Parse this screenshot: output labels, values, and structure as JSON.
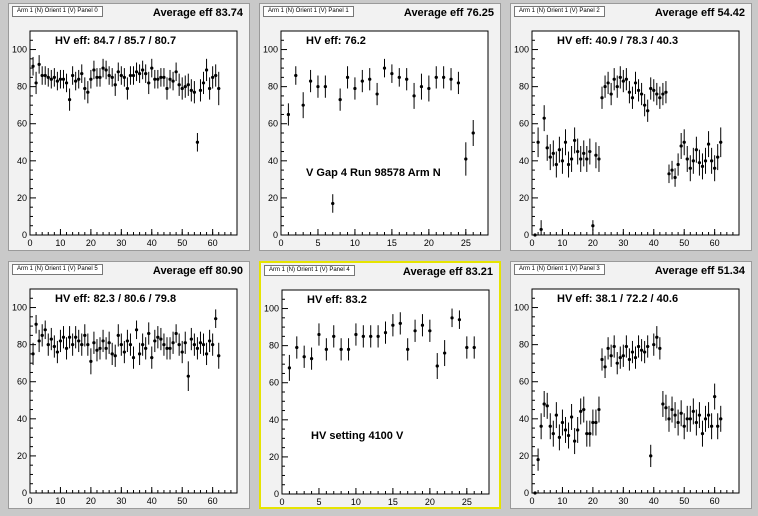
{
  "chart_data": [
    {
      "type": "scatter",
      "pad_title": "Arm 1 (N) Orient 1 (V) Panel 0",
      "average_label": "Average eff 83.74",
      "hv_label": "HV eff:   84.7 / 85.7 / 80.7",
      "annotation": "",
      "xlim": [
        0,
        68
      ],
      "ylim": [
        0,
        110
      ],
      "xticks": [
        0,
        10,
        20,
        30,
        40,
        50,
        60
      ],
      "yticks": [
        0,
        20,
        40,
        60,
        80,
        100
      ],
      "x": [
        1,
        2,
        3,
        4,
        5,
        6,
        7,
        8,
        9,
        10,
        11,
        12,
        13,
        14,
        15,
        16,
        17,
        18,
        19,
        20,
        21,
        22,
        23,
        24,
        25,
        26,
        27,
        28,
        29,
        30,
        31,
        32,
        33,
        34,
        35,
        36,
        37,
        38,
        39,
        40,
        41,
        42,
        43,
        44,
        45,
        46,
        47,
        48,
        49,
        50,
        51,
        52,
        53,
        54,
        55,
        56,
        57,
        58,
        59,
        60,
        61,
        62
      ],
      "y": [
        91,
        82,
        92,
        86,
        86,
        85,
        84,
        85,
        83,
        84,
        84,
        82,
        73,
        86,
        83,
        84,
        87,
        79,
        77,
        84,
        89,
        85,
        85,
        90,
        89,
        86,
        85,
        81,
        88,
        86,
        85,
        79,
        86,
        86,
        88,
        87,
        89,
        87,
        82,
        90,
        84,
        84,
        85,
        85,
        79,
        84,
        83,
        88,
        81,
        79,
        80,
        81,
        78,
        77,
        50,
        78,
        82,
        89,
        79,
        85,
        86,
        79
      ],
      "err": [
        5,
        6,
        5,
        5,
        5,
        5,
        5,
        5,
        5,
        5,
        5,
        5,
        6,
        5,
        5,
        5,
        5,
        6,
        6,
        5,
        5,
        5,
        5,
        5,
        5,
        5,
        5,
        6,
        5,
        5,
        5,
        6,
        5,
        5,
        5,
        5,
        5,
        5,
        6,
        5,
        5,
        5,
        5,
        5,
        6,
        5,
        5,
        5,
        6,
        6,
        6,
        6,
        6,
        6,
        5,
        6,
        6,
        6,
        6,
        6,
        6,
        9
      ]
    },
    {
      "type": "scatter",
      "pad_title": "Arm 1 (N) Orient 1 (V) Panel 1",
      "average_label": "Average eff 76.25",
      "hv_label": "HV eff:   76.2",
      "annotation": "V Gap 4 Run 98578 Arm N",
      "xlim": [
        0,
        28
      ],
      "ylim": [
        0,
        110
      ],
      "xticks": [
        0,
        5,
        10,
        15,
        20,
        25
      ],
      "yticks": [
        0,
        20,
        40,
        60,
        80,
        100
      ],
      "x": [
        1,
        2,
        3,
        4,
        5,
        6,
        7,
        8,
        9,
        10,
        11,
        12,
        13,
        14,
        15,
        16,
        17,
        18,
        19,
        20,
        21,
        22,
        23,
        24,
        25,
        26
      ],
      "y": [
        65,
        86,
        70,
        83,
        80,
        80,
        17,
        73,
        85,
        79,
        83,
        84,
        76,
        90,
        87,
        85,
        84,
        75,
        80,
        79,
        85,
        85,
        84,
        82,
        41,
        55
      ],
      "err": [
        6,
        5,
        7,
        6,
        6,
        6,
        5,
        6,
        6,
        6,
        6,
        6,
        6,
        5,
        5,
        5,
        6,
        7,
        7,
        7,
        6,
        6,
        6,
        6,
        9,
        7
      ]
    },
    {
      "type": "scatter",
      "pad_title": "Arm 1 (N) Orient 1 (V) Panel 2",
      "average_label": "Average eff 54.42",
      "hv_label": "HV eff:   40.9 / 78.3 / 40.3",
      "annotation": "",
      "xlim": [
        0,
        68
      ],
      "ylim": [
        0,
        110
      ],
      "xticks": [
        0,
        10,
        20,
        30,
        40,
        50,
        60
      ],
      "yticks": [
        0,
        20,
        40,
        60,
        80,
        100
      ],
      "x": [
        1,
        2,
        3,
        4,
        5,
        6,
        7,
        8,
        9,
        10,
        11,
        12,
        13,
        14,
        15,
        16,
        17,
        18,
        19,
        20,
        21,
        22,
        23,
        24,
        25,
        26,
        27,
        28,
        29,
        30,
        31,
        32,
        33,
        34,
        35,
        36,
        37,
        38,
        39,
        40,
        41,
        42,
        43,
        44,
        45,
        46,
        47,
        48,
        49,
        50,
        51,
        52,
        53,
        54,
        55,
        56,
        57,
        58,
        59,
        60,
        61,
        62
      ],
      "y": [
        0,
        50,
        3,
        63,
        47,
        42,
        44,
        38,
        46,
        40,
        50,
        38,
        41,
        51,
        45,
        41,
        44,
        41,
        45,
        5,
        43,
        41,
        74,
        80,
        82,
        76,
        84,
        80,
        85,
        83,
        84,
        77,
        74,
        82,
        78,
        76,
        70,
        67,
        79,
        78,
        76,
        74,
        76,
        77,
        33,
        35,
        31,
        38,
        48,
        50,
        41,
        36,
        40,
        46,
        39,
        37,
        40,
        49,
        40,
        36,
        42,
        50
      ],
      "err": [
        0,
        8,
        5,
        7,
        7,
        7,
        7,
        7,
        7,
        7,
        7,
        7,
        7,
        7,
        7,
        7,
        7,
        7,
        7,
        3,
        7,
        7,
        6,
        6,
        6,
        6,
        6,
        6,
        6,
        6,
        6,
        6,
        6,
        6,
        6,
        6,
        6,
        6,
        6,
        6,
        6,
        6,
        6,
        6,
        5,
        5,
        5,
        6,
        7,
        7,
        7,
        7,
        7,
        7,
        7,
        7,
        7,
        7,
        7,
        7,
        7,
        8
      ]
    },
    {
      "type": "scatter",
      "pad_title": "Arm 1 (N) Orient 1 (V) Panel 5",
      "average_label": "Average eff 80.90",
      "hv_label": "HV eff:   82.3 / 80.6 / 79.8",
      "annotation": "",
      "xlim": [
        0,
        68
      ],
      "ylim": [
        0,
        110
      ],
      "xticks": [
        0,
        10,
        20,
        30,
        40,
        50,
        60
      ],
      "yticks": [
        0,
        20,
        40,
        60,
        80,
        100
      ],
      "x": [
        1,
        2,
        3,
        4,
        5,
        6,
        7,
        8,
        9,
        10,
        11,
        12,
        13,
        14,
        15,
        16,
        17,
        18,
        19,
        20,
        21,
        22,
        23,
        24,
        25,
        26,
        27,
        28,
        29,
        30,
        31,
        32,
        33,
        34,
        35,
        36,
        37,
        38,
        39,
        40,
        41,
        42,
        43,
        44,
        45,
        46,
        47,
        48,
        49,
        50,
        51,
        52,
        53,
        54,
        55,
        56,
        57,
        58,
        59,
        60,
        61,
        62
      ],
      "y": [
        75,
        91,
        82,
        85,
        88,
        80,
        83,
        79,
        76,
        82,
        84,
        78,
        84,
        80,
        84,
        82,
        80,
        85,
        80,
        71,
        81,
        77,
        78,
        82,
        78,
        81,
        75,
        74,
        85,
        80,
        76,
        82,
        80,
        73,
        88,
        75,
        80,
        78,
        86,
        73,
        82,
        84,
        83,
        80,
        78,
        78,
        81,
        86,
        80,
        76,
        81,
        63,
        83,
        80,
        78,
        81,
        80,
        75,
        82,
        80,
        94,
        74
      ],
      "err": [
        6,
        5,
        6,
        6,
        5,
        6,
        6,
        6,
        6,
        6,
        6,
        6,
        6,
        6,
        6,
        6,
        6,
        6,
        6,
        7,
        6,
        6,
        6,
        6,
        6,
        6,
        6,
        6,
        6,
        6,
        6,
        6,
        6,
        6,
        5,
        6,
        6,
        6,
        6,
        6,
        6,
        6,
        6,
        6,
        6,
        6,
        6,
        5,
        6,
        6,
        6,
        8,
        6,
        6,
        6,
        6,
        6,
        6,
        6,
        6,
        5,
        7
      ]
    },
    {
      "type": "scatter",
      "pad_title": "Arm 1 (N) Orient 1 (V) Panel 4",
      "average_label": "Average eff 83.21",
      "hv_label": "HV eff:   83.2",
      "annotation": "HV setting 4100 V",
      "xlim": [
        0,
        28
      ],
      "ylim": [
        0,
        110
      ],
      "xticks": [
        0,
        5,
        10,
        15,
        20,
        25
      ],
      "yticks": [
        0,
        20,
        40,
        60,
        80,
        100
      ],
      "x": [
        1,
        2,
        3,
        4,
        5,
        6,
        7,
        8,
        9,
        10,
        11,
        12,
        13,
        14,
        15,
        16,
        17,
        18,
        19,
        20,
        21,
        22,
        23,
        24,
        25,
        26
      ],
      "y": [
        68,
        79,
        74,
        73,
        86,
        78,
        85,
        78,
        78,
        86,
        85,
        85,
        85,
        87,
        91,
        92,
        78,
        88,
        91,
        88,
        69,
        76,
        95,
        94,
        79,
        79
      ],
      "err": [
        7,
        6,
        6,
        6,
        6,
        6,
        6,
        6,
        6,
        6,
        6,
        6,
        6,
        6,
        6,
        6,
        6,
        6,
        6,
        6,
        7,
        7,
        5,
        5,
        6,
        6
      ]
    },
    {
      "type": "scatter",
      "pad_title": "Arm 1 (N) Orient 1 (V) Panel 3",
      "average_label": "Average eff 51.34",
      "hv_label": "HV eff:   38.1 / 72.2 / 40.6",
      "annotation": "",
      "xlim": [
        0,
        68
      ],
      "ylim": [
        0,
        110
      ],
      "xticks": [
        0,
        10,
        20,
        30,
        40,
        50,
        60
      ],
      "yticks": [
        0,
        20,
        40,
        60,
        80,
        100
      ],
      "x": [
        1,
        2,
        3,
        4,
        5,
        6,
        7,
        8,
        9,
        10,
        11,
        12,
        13,
        14,
        15,
        16,
        17,
        18,
        19,
        20,
        21,
        22,
        23,
        24,
        25,
        26,
        27,
        28,
        29,
        30,
        31,
        32,
        33,
        34,
        35,
        36,
        37,
        38,
        39,
        40,
        41,
        42,
        43,
        44,
        45,
        46,
        47,
        48,
        49,
        50,
        51,
        52,
        53,
        54,
        55,
        56,
        57,
        58,
        59,
        60,
        61,
        62
      ],
      "y": [
        0,
        18,
        36,
        48,
        47,
        36,
        32,
        42,
        30,
        38,
        34,
        31,
        41,
        28,
        34,
        44,
        45,
        32,
        32,
        38,
        38,
        45,
        72,
        68,
        78,
        74,
        79,
        70,
        73,
        74,
        79,
        72,
        76,
        73,
        79,
        77,
        76,
        79,
        20,
        80,
        84,
        78,
        48,
        46,
        40,
        45,
        42,
        38,
        43,
        36,
        40,
        40,
        44,
        38,
        42,
        32,
        40,
        42,
        36,
        52,
        36,
        40
      ],
      "err": [
        0,
        6,
        7,
        7,
        7,
        7,
        7,
        7,
        7,
        7,
        7,
        7,
        7,
        7,
        7,
        7,
        7,
        7,
        7,
        7,
        7,
        7,
        6,
        6,
        6,
        6,
        6,
        6,
        6,
        6,
        6,
        6,
        6,
        6,
        6,
        6,
        6,
        6,
        6,
        6,
        6,
        6,
        7,
        7,
        7,
        7,
        7,
        7,
        7,
        7,
        7,
        7,
        7,
        7,
        7,
        7,
        7,
        7,
        7,
        7,
        7,
        7
      ]
    }
  ]
}
